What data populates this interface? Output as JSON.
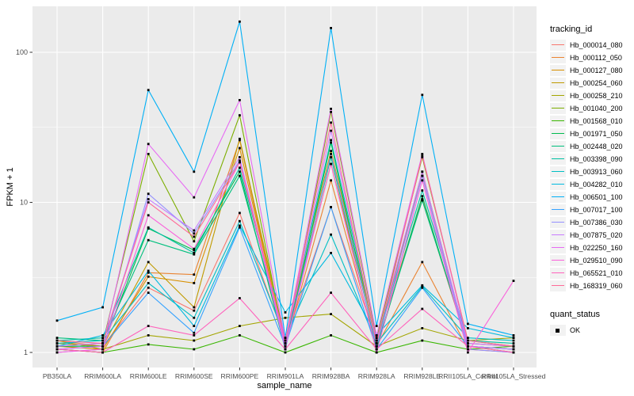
{
  "figure": {
    "panel_bg": "#EBEBEB",
    "grid_color": "#FFFFFF",
    "tick_color": "#333333",
    "tick_label_color": "#4D4D4D",
    "point_color": "#000000"
  },
  "axes": {
    "x_title": "sample_name",
    "y_title": "FPKM + 1",
    "y_ticks": [
      {
        "label": "1",
        "value": 1
      },
      {
        "label": "10",
        "value": 10
      },
      {
        "label": "100",
        "value": 100
      }
    ],
    "y_minor": [
      3.1623,
      31.623
    ]
  },
  "legend": {
    "title": "tracking_id",
    "quant_title": "quant_status",
    "quant_items": [
      {
        "label": "OK",
        "marker": "black-square"
      }
    ]
  },
  "chart_data": {
    "type": "line",
    "xlabel": "sample_name",
    "ylabel": "FPKM + 1",
    "y_scale": "log10",
    "ylim": [
      0.8,
      200
    ],
    "grid": true,
    "legend_position": "right",
    "point_marker": "black-square",
    "categories": [
      "PB350LA",
      "RRIM600LA",
      "RRIM600LE",
      "RRIM600SE",
      "RRIM600PE",
      "RRIM901LA",
      "RRIM928BA",
      "RRIM928LA",
      "RRIM928LE",
      "RRII105LA_Control",
      "RRII105LA_Stressed"
    ],
    "series": [
      {
        "name": "Hb_000014_080",
        "color": "#F8766D",
        "values": [
          1.2,
          1.1,
          2.7,
          1.9,
          8.5,
          1.2,
          9.3,
          1.2,
          10.5,
          1.1,
          1.0
        ]
      },
      {
        "name": "Hb_000112_050",
        "color": "#EA8331",
        "values": [
          1.05,
          1.0,
          3.4,
          3.3,
          26.0,
          1.1,
          14.0,
          1.1,
          4.0,
          1.05,
          1.0
        ]
      },
      {
        "name": "Hb_000127_080",
        "color": "#D89000",
        "values": [
          1.1,
          1.05,
          3.2,
          2.9,
          23.0,
          1.15,
          18.0,
          1.15,
          16.0,
          1.1,
          1.0
        ]
      },
      {
        "name": "Hb_000254_060",
        "color": "#C09B00",
        "values": [
          1.15,
          1.1,
          4.0,
          2.0,
          26.5,
          1.2,
          22.0,
          1.2,
          15.0,
          1.1,
          1.05
        ]
      },
      {
        "name": "Hb_000258_210",
        "color": "#A3A500",
        "values": [
          1.2,
          1.05,
          1.3,
          1.2,
          1.5,
          1.7,
          1.8,
          1.1,
          1.45,
          1.2,
          1.25
        ]
      },
      {
        "name": "Hb_001040_200",
        "color": "#7CAE00",
        "values": [
          1.1,
          1.15,
          21.0,
          5.5,
          38.0,
          1.1,
          40.0,
          1.25,
          20.0,
          1.2,
          1.1
        ]
      },
      {
        "name": "Hb_001568_010",
        "color": "#39B600",
        "values": [
          1.05,
          1.0,
          1.13,
          1.05,
          1.3,
          1.0,
          1.3,
          1.0,
          1.2,
          1.05,
          1.1
        ]
      },
      {
        "name": "Hb_001971_050",
        "color": "#00BB4E",
        "values": [
          1.1,
          1.1,
          6.7,
          4.8,
          16.0,
          1.05,
          25.0,
          1.05,
          11.0,
          1.1,
          1.05
        ]
      },
      {
        "name": "Hb_002448_020",
        "color": "#00BF7D",
        "values": [
          1.25,
          1.2,
          5.6,
          4.5,
          15.0,
          1.15,
          20.0,
          1.1,
          10.3,
          1.15,
          1.1
        ]
      },
      {
        "name": "Hb_003398_090",
        "color": "#00C1A3",
        "values": [
          1.2,
          1.25,
          6.8,
          4.6,
          17.0,
          1.2,
          26.0,
          1.2,
          12.0,
          1.2,
          1.15
        ]
      },
      {
        "name": "Hb_003913_060",
        "color": "#00BFC4",
        "values": [
          1.15,
          1.2,
          2.9,
          1.7,
          7.5,
          1.25,
          6.1,
          1.15,
          2.75,
          1.25,
          1.2
        ]
      },
      {
        "name": "Hb_004282_010",
        "color": "#00BAE0",
        "values": [
          1.1,
          1.3,
          3.5,
          1.5,
          7.0,
          1.85,
          4.6,
          1.3,
          2.8,
          1.45,
          1.25
        ]
      },
      {
        "name": "Hb_006501_100",
        "color": "#00B0F6",
        "values": [
          1.63,
          2.0,
          56.0,
          16.0,
          160.0,
          1.25,
          145.0,
          1.5,
          52.0,
          1.55,
          1.3
        ]
      },
      {
        "name": "Hb_007017_100",
        "color": "#35A2FF",
        "values": [
          1.05,
          1.1,
          2.5,
          1.35,
          6.8,
          1.1,
          9.3,
          1.05,
          2.7,
          1.1,
          1.05
        ]
      },
      {
        "name": "Hb_007386_030",
        "color": "#9590FF",
        "values": [
          1.0,
          1.05,
          11.4,
          6.2,
          19.0,
          1.05,
          21.0,
          1.1,
          15.0,
          1.05,
          1.0
        ]
      },
      {
        "name": "Hb_007875_020",
        "color": "#C77CFF",
        "values": [
          1.1,
          1.15,
          10.5,
          6.5,
          20.0,
          1.15,
          30.0,
          1.2,
          16.0,
          1.1,
          1.05
        ]
      },
      {
        "name": "Hb_022250_160",
        "color": "#E76BF3",
        "values": [
          1.05,
          1.1,
          24.5,
          10.8,
          48.0,
          1.2,
          42.0,
          1.3,
          21.0,
          1.15,
          1.1
        ]
      },
      {
        "name": "Hb_029510_090",
        "color": "#FA62DB",
        "values": [
          1.0,
          1.05,
          8.2,
          4.9,
          18.5,
          1.1,
          18.0,
          1.0,
          14.0,
          1.0,
          3.0
        ]
      },
      {
        "name": "Hb_065521_010",
        "color": "#FF62BC",
        "values": [
          1.05,
          1.0,
          1.5,
          1.3,
          2.3,
          1.05,
          2.5,
          1.05,
          1.95,
          1.1,
          1.0
        ]
      },
      {
        "name": "Hb_168319_060",
        "color": "#FF6A98",
        "values": [
          1.2,
          1.15,
          10.0,
          5.9,
          18.5,
          1.2,
          34.0,
          1.15,
          20.5,
          1.2,
          1.1
        ]
      }
    ],
    "quant_status": {
      "title": "quant_status",
      "items": [
        "OK"
      ]
    }
  }
}
